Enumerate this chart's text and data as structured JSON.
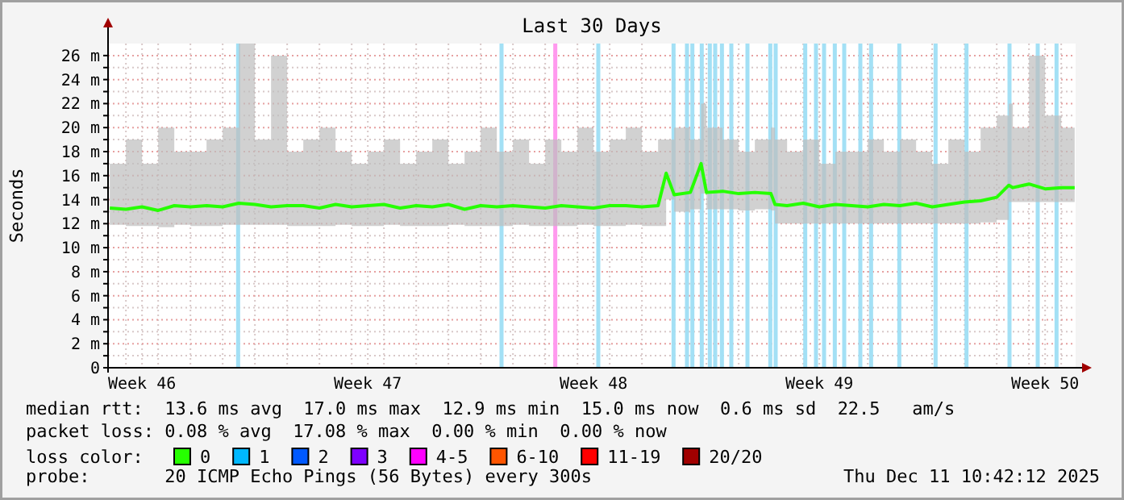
{
  "chart_data": {
    "type": "line",
    "title": "Last 30 Days",
    "ylabel": "Seconds",
    "x": [
      "2025-11-11T12:00",
      "2025-11-12T00:00",
      "2025-11-12T12:00",
      "2025-11-13T00:00",
      "2025-11-13T12:00",
      "2025-11-14T00:00",
      "2025-11-14T12:00",
      "2025-11-15T00:00",
      "2025-11-15T12:00",
      "2025-11-16T00:00",
      "2025-11-16T12:00",
      "2025-11-17T00:00",
      "2025-11-17T12:00",
      "2025-11-18T00:00",
      "2025-11-18T12:00",
      "2025-11-19T00:00",
      "2025-11-19T12:00",
      "2025-11-20T00:00",
      "2025-11-20T12:00",
      "2025-11-21T00:00",
      "2025-11-21T12:00",
      "2025-11-22T00:00",
      "2025-11-22T12:00",
      "2025-11-23T00:00",
      "2025-11-23T12:00",
      "2025-11-24T00:00",
      "2025-11-24T12:00",
      "2025-11-25T00:00",
      "2025-11-25T12:00",
      "2025-11-26T00:00",
      "2025-11-26T12:00",
      "2025-11-27T00:00",
      "2025-11-27T12:00",
      "2025-11-28T00:00",
      "2025-11-28T12:00",
      "2025-11-28T18:00",
      "2025-11-29T00:00",
      "2025-11-29T12:00",
      "2025-11-29T20:00",
      "2025-11-30T00:00",
      "2025-11-30T12:00",
      "2025-12-01T00:00",
      "2025-12-01T12:00",
      "2025-12-02T00:00",
      "2025-12-02T03:00",
      "2025-12-02T12:00",
      "2025-12-03T00:00",
      "2025-12-03T12:00",
      "2025-12-04T00:00",
      "2025-12-04T12:00",
      "2025-12-05T00:00",
      "2025-12-05T12:00",
      "2025-12-06T00:00",
      "2025-12-06T12:00",
      "2025-12-07T00:00",
      "2025-12-07T12:00",
      "2025-12-08T00:00",
      "2025-12-08T12:00",
      "2025-12-09T00:00",
      "2025-12-09T09:00",
      "2025-12-09T12:00",
      "2025-12-10T00:00",
      "2025-12-10T12:00",
      "2025-12-11T00:00",
      "2025-12-11T10:00"
    ],
    "series": [
      {
        "name": "0",
        "color": "#26ff00",
        "values": [
          13.3,
          13.2,
          13.4,
          13.1,
          13.5,
          13.4,
          13.5,
          13.4,
          13.7,
          13.6,
          13.4,
          13.5,
          13.5,
          13.3,
          13.6,
          13.4,
          13.5,
          13.6,
          13.3,
          13.5,
          13.4,
          13.6,
          13.2,
          13.5,
          13.4,
          13.5,
          13.4,
          13.3,
          13.5,
          13.4,
          13.3,
          13.5,
          13.5,
          13.4,
          13.5,
          16.2,
          14.4,
          14.6,
          17.0,
          14.6,
          14.7,
          14.5,
          14.6,
          14.5,
          13.6,
          13.5,
          13.7,
          13.4,
          13.6,
          13.5,
          13.4,
          13.6,
          13.5,
          13.7,
          13.4,
          13.6,
          13.8,
          13.9,
          14.2,
          15.2,
          15.0,
          15.3,
          14.9,
          15.0,
          15.0
        ],
        "lower": [
          11.9,
          11.8,
          11.8,
          11.7,
          11.9,
          11.8,
          11.8,
          11.9,
          11.9,
          11.9,
          11.9,
          11.8,
          11.8,
          11.8,
          11.9,
          11.8,
          11.8,
          11.9,
          11.8,
          11.8,
          11.8,
          11.9,
          11.8,
          11.8,
          11.8,
          11.9,
          11.8,
          11.8,
          11.8,
          11.9,
          11.8,
          11.8,
          11.9,
          11.8,
          11.8,
          14.0,
          13.0,
          13.2,
          14.5,
          13.2,
          13.2,
          13.1,
          13.2,
          13.1,
          12.0,
          12.0,
          12.0,
          12.0,
          12.0,
          12.0,
          12.0,
          12.0,
          12.0,
          12.0,
          12.0,
          12.0,
          12.0,
          12.1,
          12.3,
          13.8,
          13.8,
          13.8,
          13.8,
          13.8,
          13.8
        ],
        "upper": [
          17,
          19,
          17,
          20,
          18,
          18,
          19,
          20,
          27,
          19,
          26,
          18,
          19,
          20,
          18,
          17,
          18,
          19,
          17,
          18,
          19,
          17,
          18,
          20,
          18,
          19,
          17,
          19,
          18,
          20,
          18,
          19,
          20,
          18,
          19,
          19,
          20,
          19,
          22,
          20,
          19,
          18,
          19,
          20,
          19,
          18,
          19,
          17,
          18,
          18,
          19,
          18,
          19,
          18,
          17,
          19,
          18,
          20,
          21,
          22,
          20,
          26,
          21,
          20,
          19
        ]
      },
      {
        "name": "1",
        "color": "#00b8ff",
        "values": [
          null,
          null,
          null,
          null,
          null,
          null,
          null,
          null,
          null,
          null,
          null,
          null,
          null,
          null,
          null,
          null,
          null,
          null,
          null,
          null,
          null,
          null,
          null,
          null,
          null,
          null,
          null,
          null,
          null,
          null,
          null,
          null,
          null,
          null,
          null,
          null,
          null,
          null,
          null,
          null,
          null,
          null,
          null,
          null,
          null,
          null,
          null,
          null,
          null,
          null,
          null,
          null,
          null,
          null,
          null,
          null,
          null,
          null,
          null,
          null,
          null,
          null,
          null,
          null,
          null
        ]
      },
      {
        "name": "2",
        "color": "#0059ff",
        "values": [
          null,
          null,
          null,
          null,
          null,
          null,
          null,
          null,
          null,
          null,
          null,
          null,
          null,
          null,
          null,
          null,
          null,
          null,
          null,
          null,
          null,
          null,
          null,
          null,
          null,
          null,
          null,
          null,
          null,
          null,
          null,
          null,
          null,
          null,
          null,
          null,
          null,
          null,
          null,
          null,
          null,
          null,
          null,
          null,
          null,
          null,
          null,
          null,
          null,
          null,
          null,
          null,
          null,
          null,
          null,
          null,
          null,
          null,
          null,
          null,
          null,
          null,
          null,
          null,
          null
        ]
      },
      {
        "name": "3",
        "color": "#7e00ff",
        "values": [
          null,
          null,
          null,
          null,
          null,
          null,
          null,
          null,
          null,
          null,
          null,
          null,
          null,
          null,
          null,
          null,
          null,
          null,
          null,
          null,
          null,
          null,
          null,
          null,
          null,
          null,
          null,
          null,
          null,
          null,
          null,
          null,
          null,
          null,
          null,
          null,
          null,
          null,
          null,
          null,
          null,
          null,
          null,
          null,
          null,
          null,
          null,
          null,
          null,
          null,
          null,
          null,
          null,
          null,
          null,
          null,
          null,
          null,
          null,
          null,
          null,
          null,
          null,
          null,
          null
        ]
      },
      {
        "name": "4-5",
        "color": "#ff00ff",
        "values": [
          null,
          null,
          null,
          null,
          null,
          null,
          null,
          null,
          null,
          null,
          null,
          null,
          null,
          null,
          null,
          null,
          null,
          null,
          null,
          null,
          null,
          null,
          null,
          null,
          null,
          null,
          null,
          null,
          null,
          null,
          null,
          null,
          null,
          null,
          null,
          null,
          null,
          null,
          null,
          null,
          null,
          null,
          null,
          null,
          null,
          null,
          null,
          null,
          null,
          null,
          null,
          null,
          null,
          null,
          null,
          null,
          null,
          null,
          null,
          null,
          null,
          null,
          null,
          null,
          null
        ]
      },
      {
        "name": "6-10",
        "color": "#ff5500",
        "values": [
          null,
          null,
          null,
          null,
          null,
          null,
          null,
          null,
          null,
          null,
          null,
          null,
          null,
          null,
          null,
          null,
          null,
          null,
          null,
          null,
          null,
          null,
          null,
          null,
          null,
          null,
          null,
          null,
          null,
          null,
          null,
          null,
          null,
          null,
          null,
          null,
          null,
          null,
          null,
          null,
          null,
          null,
          null,
          null,
          null,
          null,
          null,
          null,
          null,
          null,
          null,
          null,
          null,
          null,
          null,
          null,
          null,
          null,
          null,
          null,
          null,
          null,
          null,
          null,
          null
        ]
      },
      {
        "name": "11-19",
        "color": "#ff0000",
        "values": [
          null,
          null,
          null,
          null,
          null,
          null,
          null,
          null,
          null,
          null,
          null,
          null,
          null,
          null,
          null,
          null,
          null,
          null,
          null,
          null,
          null,
          null,
          null,
          null,
          null,
          null,
          null,
          null,
          null,
          null,
          null,
          null,
          null,
          null,
          null,
          null,
          null,
          null,
          null,
          null,
          null,
          null,
          null,
          null,
          null,
          null,
          null,
          null,
          null,
          null,
          null,
          null,
          null,
          null,
          null,
          null,
          null,
          null,
          null,
          null,
          null,
          null,
          null,
          null,
          null
        ]
      },
      {
        "name": "20/20",
        "color": "#a10000",
        "values": [
          null,
          null,
          null,
          null,
          null,
          null,
          null,
          null,
          null,
          null,
          null,
          null,
          null,
          null,
          null,
          null,
          null,
          null,
          null,
          null,
          null,
          null,
          null,
          null,
          null,
          null,
          null,
          null,
          null,
          null,
          null,
          null,
          null,
          null,
          null,
          null,
          null,
          null,
          null,
          null,
          null,
          null,
          null,
          null,
          null,
          null,
          null,
          null,
          null,
          null,
          null,
          null,
          null,
          null,
          null,
          null,
          null,
          null,
          null,
          null,
          null,
          null,
          null,
          null,
          null
        ]
      }
    ],
    "legend": "bottom",
    "legend_title": "loss color:",
    "grid": true,
    "xlim": [
      "2025-11-11T10:42",
      "2025-12-11T10:42"
    ],
    "xticks": [
      {
        "value": "2025-11-12T12:00",
        "label": "Week 46"
      },
      {
        "value": "2025-11-19T12:00",
        "label": "Week 47"
      },
      {
        "value": "2025-11-26T12:00",
        "label": "Week 48"
      },
      {
        "value": "2025-12-03T12:00",
        "label": "Week 49"
      },
      {
        "value": "2025-12-10T12:00",
        "label": "Week 50"
      },
      {
        "value": "2025-11-12T00:00",
        "label": null
      },
      {
        "value": "2025-11-13T00:00",
        "label": null
      },
      {
        "value": "2025-11-14T00:00",
        "label": null
      },
      {
        "value": "2025-11-15T00:00",
        "label": null
      },
      {
        "value": "2025-11-16T00:00",
        "label": null
      },
      {
        "value": "2025-11-17T00:00",
        "label": null
      },
      {
        "value": "2025-11-18T00:00",
        "label": null
      },
      {
        "value": "2025-11-19T00:00",
        "label": null
      },
      {
        "value": "2025-11-20T00:00",
        "label": null
      },
      {
        "value": "2025-11-21T00:00",
        "label": null
      },
      {
        "value": "2025-11-22T00:00",
        "label": null
      },
      {
        "value": "2025-11-23T00:00",
        "label": null
      },
      {
        "value": "2025-11-24T00:00",
        "label": null
      },
      {
        "value": "2025-11-25T00:00",
        "label": null
      },
      {
        "value": "2025-11-26T00:00",
        "label": null
      },
      {
        "value": "2025-11-27T00:00",
        "label": null
      },
      {
        "value": "2025-11-28T00:00",
        "label": null
      },
      {
        "value": "2025-11-29T00:00",
        "label": null
      },
      {
        "value": "2025-11-30T00:00",
        "label": null
      },
      {
        "value": "2025-12-01T00:00",
        "label": null
      },
      {
        "value": "2025-12-02T00:00",
        "label": null
      },
      {
        "value": "2025-12-03T00:00",
        "label": null
      },
      {
        "value": "2025-12-04T00:00",
        "label": null
      },
      {
        "value": "2025-12-05T00:00",
        "label": null
      },
      {
        "value": "2025-12-06T00:00",
        "label": null
      },
      {
        "value": "2025-12-07T00:00",
        "label": null
      },
      {
        "value": "2025-12-08T00:00",
        "label": null
      },
      {
        "value": "2025-12-09T00:00",
        "label": null
      },
      {
        "value": "2025-12-10T00:00",
        "label": null
      },
      {
        "value": "2025-12-11T00:00",
        "label": null
      }
    ],
    "ylim": [
      0,
      27
    ],
    "yticks": [
      {
        "value": 0,
        "label": "0"
      },
      {
        "value": 1,
        "label": null
      },
      {
        "value": 2,
        "label": "2 m"
      },
      {
        "value": 3,
        "label": null
      },
      {
        "value": 4,
        "label": "4 m"
      },
      {
        "value": 5,
        "label": null
      },
      {
        "value": 6,
        "label": "6 m"
      },
      {
        "value": 7,
        "label": null
      },
      {
        "value": 8,
        "label": "8 m"
      },
      {
        "value": 9,
        "label": null
      },
      {
        "value": 10,
        "label": "10 m"
      },
      {
        "value": 11,
        "label": null
      },
      {
        "value": 12,
        "label": "12 m"
      },
      {
        "value": 13,
        "label": null
      },
      {
        "value": 14,
        "label": "14 m"
      },
      {
        "value": 15,
        "label": null
      },
      {
        "value": 16,
        "label": "16 m"
      },
      {
        "value": 17,
        "label": null
      },
      {
        "value": 18,
        "label": "18 m"
      },
      {
        "value": 19,
        "label": null
      },
      {
        "value": 20,
        "label": "20 m"
      },
      {
        "value": 21,
        "label": null
      },
      {
        "value": 22,
        "label": "22 m"
      },
      {
        "value": 23,
        "label": null
      },
      {
        "value": 24,
        "label": "24 m"
      },
      {
        "value": 25,
        "label": null
      },
      {
        "value": 26,
        "label": "26 m"
      }
    ],
    "bands": [
      {
        "axis": "x",
        "from": "2025-11-15T10:00",
        "to": "2025-11-15T13:00",
        "color": "#a3e0f5"
      },
      {
        "axis": "x",
        "from": "2025-11-23T14:00",
        "to": "2025-11-23T17:00",
        "color": "#a3e0f5"
      },
      {
        "axis": "x",
        "from": "2025-11-25T06:00",
        "to": "2025-11-25T09:00",
        "color": "#ff99ee"
      },
      {
        "axis": "x",
        "from": "2025-11-26T14:00",
        "to": "2025-11-26T17:00",
        "color": "#a3e0f5"
      },
      {
        "axis": "x",
        "from": "2025-11-28T22:00",
        "to": "2025-11-29T01:00",
        "color": "#a3e0f5"
      },
      {
        "axis": "x",
        "from": "2025-11-29T08:00",
        "to": "2025-11-29T11:00",
        "color": "#a3e0f5"
      },
      {
        "axis": "x",
        "from": "2025-11-29T12:00",
        "to": "2025-11-29T15:00",
        "color": "#a3e0f5"
      },
      {
        "axis": "x",
        "from": "2025-11-29T19:00",
        "to": "2025-11-29T22:00",
        "color": "#a3e0f5"
      },
      {
        "axis": "x",
        "from": "2025-11-30T01:00",
        "to": "2025-11-30T04:00",
        "color": "#a3e0f5"
      },
      {
        "axis": "x",
        "from": "2025-11-30T05:00",
        "to": "2025-11-30T08:00",
        "color": "#a3e0f5"
      },
      {
        "axis": "x",
        "from": "2025-11-30T10:00",
        "to": "2025-11-30T13:00",
        "color": "#a3e0f5"
      },
      {
        "axis": "x",
        "from": "2025-11-30T17:00",
        "to": "2025-11-30T20:00",
        "color": "#a3e0f5"
      },
      {
        "axis": "x",
        "from": "2025-12-01T05:00",
        "to": "2025-12-01T08:00",
        "color": "#a3e0f5"
      },
      {
        "axis": "x",
        "from": "2025-12-01T22:00",
        "to": "2025-12-02T01:00",
        "color": "#a3e0f5"
      },
      {
        "axis": "x",
        "from": "2025-12-02T02:00",
        "to": "2025-12-02T05:00",
        "color": "#a3e0f5"
      },
      {
        "axis": "x",
        "from": "2025-12-03T00:00",
        "to": "2025-12-03T03:00",
        "color": "#a3e0f5"
      },
      {
        "axis": "x",
        "from": "2025-12-03T08:00",
        "to": "2025-12-03T11:00",
        "color": "#a3e0f5"
      },
      {
        "axis": "x",
        "from": "2025-12-03T14:00",
        "to": "2025-12-03T17:00",
        "color": "#a3e0f5"
      },
      {
        "axis": "x",
        "from": "2025-12-03T22:00",
        "to": "2025-12-04T01:00",
        "color": "#a3e0f5"
      },
      {
        "axis": "x",
        "from": "2025-12-04T05:00",
        "to": "2025-12-04T08:00",
        "color": "#a3e0f5"
      },
      {
        "axis": "x",
        "from": "2025-12-04T17:00",
        "to": "2025-12-04T20:00",
        "color": "#a3e0f5"
      },
      {
        "axis": "x",
        "from": "2025-12-05T01:00",
        "to": "2025-12-05T04:00",
        "color": "#a3e0f5"
      },
      {
        "axis": "x",
        "from": "2025-12-05T22:00",
        "to": "2025-12-06T01:00",
        "color": "#a3e0f5"
      },
      {
        "axis": "x",
        "from": "2025-12-07T01:00",
        "to": "2025-12-07T04:00",
        "color": "#a3e0f5"
      },
      {
        "axis": "x",
        "from": "2025-12-08T00:00",
        "to": "2025-12-08T03:00",
        "color": "#a3e0f5"
      },
      {
        "axis": "x",
        "from": "2025-12-09T08:00",
        "to": "2025-12-09T11:00",
        "color": "#a3e0f5"
      },
      {
        "axis": "x",
        "from": "2025-12-10T05:00",
        "to": "2025-12-10T08:00",
        "color": "#a3e0f5"
      },
      {
        "axis": "x",
        "from": "2025-12-10T19:00",
        "to": "2025-12-10T22:00",
        "color": "#a3e0f5"
      }
    ],
    "annotations": [
      "median rtt:  13.6 ms avg  17.0 ms max  12.9 ms min  15.0 ms now  0.6 ms sd  22.5   am/s",
      "packet loss: 0.08 % avg  17.08 % max  0.00 % min  0.00 % now",
      "probe:       20 ICMP Echo Pings (56 Bytes) every 300s",
      "Thu Dec 11 10:42:12 2025"
    ]
  }
}
